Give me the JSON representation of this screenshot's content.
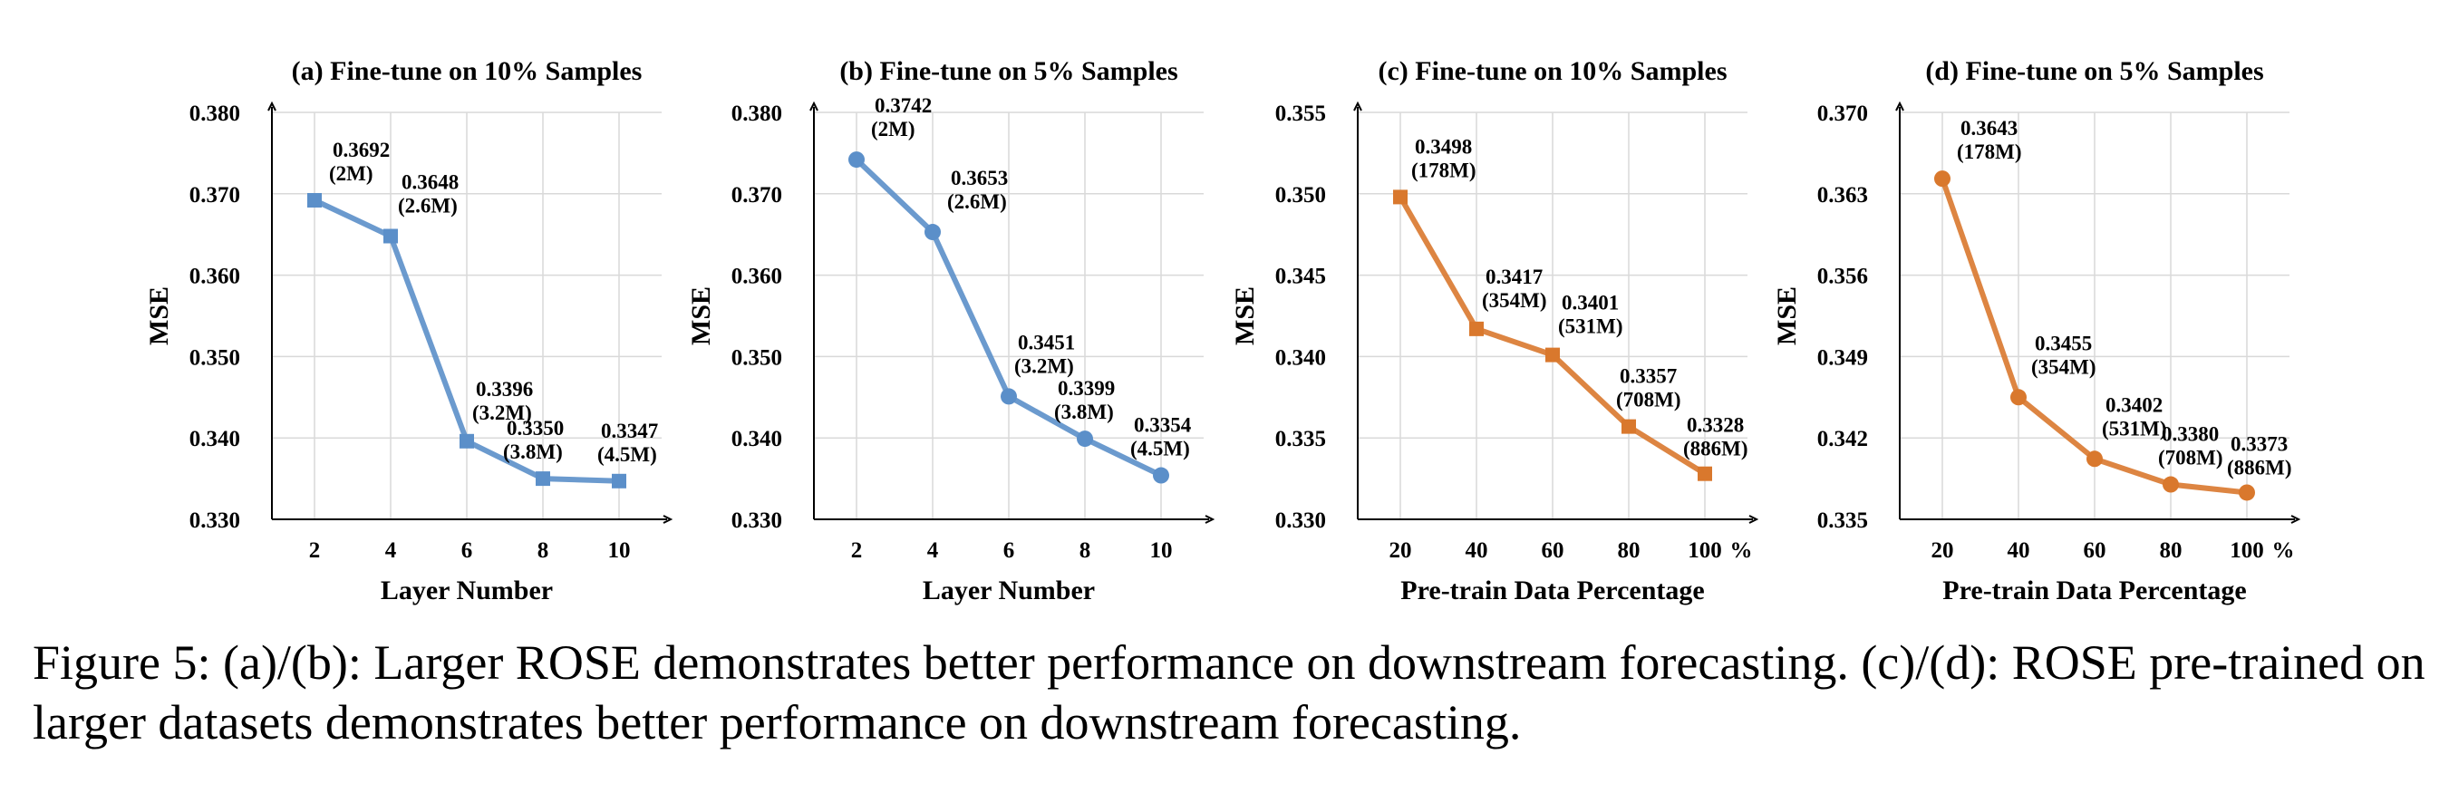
{
  "caption": "Figure 5: (a)/(b): Larger ROSE demonstrates better performance on downstream forecasting. (c)/(d): ROSE pre-trained on larger datasets demonstrates better performance on downstream forecasting.",
  "colors": {
    "blue": "#5b8fc9",
    "orange": "#d9782d"
  },
  "chart_data": [
    {
      "type": "line",
      "title": "(a) Fine-tune on 10% Samples",
      "xlabel": "Layer Number",
      "ylabel": "MSE",
      "x": [
        2,
        4,
        6,
        8,
        10
      ],
      "x_ticks": [
        "2",
        "4",
        "6",
        "8",
        "10"
      ],
      "x_unit": "",
      "ylim": [
        0.33,
        0.38
      ],
      "y_ticks": [
        "0.330",
        "0.340",
        "0.350",
        "0.360",
        "0.370",
        "0.380"
      ],
      "marker": "square",
      "color": "blue",
      "series": [
        {
          "values": [
            0.3692,
            0.3648,
            0.3396,
            0.335,
            0.3347
          ]
        }
      ],
      "data_labels": [
        [
          "0.3692",
          "(2M)"
        ],
        [
          "0.3648",
          "(2.6M)"
        ],
        [
          "0.3396",
          "(3.2M)"
        ],
        [
          "0.3350",
          "(3.8M)"
        ],
        [
          "0.3347",
          "(4.5M)"
        ]
      ],
      "grid": true
    },
    {
      "type": "line",
      "title": "(b) Fine-tune on 5% Samples",
      "xlabel": "Layer Number",
      "ylabel": "MSE",
      "x": [
        2,
        4,
        6,
        8,
        10
      ],
      "x_ticks": [
        "2",
        "4",
        "6",
        "8",
        "10"
      ],
      "x_unit": "",
      "ylim": [
        0.33,
        0.38
      ],
      "y_ticks": [
        "0.330",
        "0.340",
        "0.350",
        "0.360",
        "0.370",
        "0.380"
      ],
      "marker": "circle",
      "color": "blue",
      "series": [
        {
          "values": [
            0.3742,
            0.3653,
            0.3451,
            0.3399,
            0.3354
          ]
        }
      ],
      "data_labels": [
        [
          "0.3742",
          "(2M)"
        ],
        [
          "0.3653",
          "(2.6M)"
        ],
        [
          "0.3451",
          "(3.2M)"
        ],
        [
          "0.3399",
          "(3.8M)"
        ],
        [
          "0.3354",
          "(4.5M)"
        ]
      ],
      "grid": true
    },
    {
      "type": "line",
      "title": "(c) Fine-tune on 10% Samples",
      "xlabel": "Pre-train Data Percentage",
      "ylabel": "MSE",
      "x": [
        20,
        40,
        60,
        80,
        100
      ],
      "x_ticks": [
        "20",
        "40",
        "60",
        "80",
        "100"
      ],
      "x_unit": "%",
      "ylim": [
        0.33,
        0.355
      ],
      "y_ticks": [
        "0.330",
        "0.335",
        "0.340",
        "0.345",
        "0.350",
        "0.355"
      ],
      "marker": "square",
      "color": "orange",
      "series": [
        {
          "values": [
            0.3498,
            0.3417,
            0.3401,
            0.3357,
            0.3328
          ]
        }
      ],
      "data_labels": [
        [
          "0.3498",
          "(178M)"
        ],
        [
          "0.3417",
          "(354M)"
        ],
        [
          "0.3401",
          "(531M)"
        ],
        [
          "0.3357",
          "(708M)"
        ],
        [
          "0.3328",
          "(886M)"
        ]
      ],
      "grid": true
    },
    {
      "type": "line",
      "title": "(d) Fine-tune on 5% Samples",
      "xlabel": "Pre-train Data Percentage",
      "ylabel": "MSE",
      "x": [
        20,
        40,
        60,
        80,
        100
      ],
      "x_ticks": [
        "20",
        "40",
        "60",
        "80",
        "100"
      ],
      "x_unit": "%",
      "ylim": [
        0.335,
        0.37
      ],
      "y_ticks": [
        "0.335",
        "0.342",
        "0.349",
        "0.356",
        "0.363",
        "0.370"
      ],
      "marker": "circle",
      "color": "orange",
      "series": [
        {
          "values": [
            0.3643,
            0.3455,
            0.3402,
            0.338,
            0.3373
          ]
        }
      ],
      "data_labels": [
        [
          "0.3643",
          "(178M)"
        ],
        [
          "0.3455",
          "(354M)"
        ],
        [
          "0.3402",
          "(531M)"
        ],
        [
          "0.3380",
          "(708M)"
        ],
        [
          "0.3373",
          "(886M)"
        ]
      ],
      "grid": true
    }
  ]
}
